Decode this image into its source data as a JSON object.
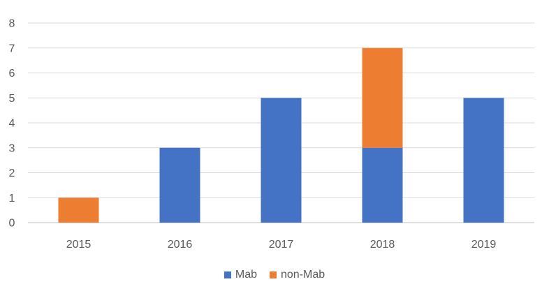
{
  "chart_data": {
    "type": "bar",
    "stacked": true,
    "title": "",
    "xlabel": "",
    "ylabel": "",
    "categories": [
      "2015",
      "2016",
      "2017",
      "2018",
      "2019"
    ],
    "ylim": [
      0,
      8
    ],
    "yticks": [
      0,
      1,
      2,
      3,
      4,
      5,
      6,
      7,
      8
    ],
    "grid": true,
    "legend_position": "bottom",
    "series": [
      {
        "name": "Mab",
        "color": "#4472C4",
        "values": [
          0,
          3,
          5,
          3,
          5
        ]
      },
      {
        "name": "non-Mab",
        "color": "#ED7D31",
        "values": [
          1,
          0,
          0,
          4,
          0
        ]
      }
    ]
  }
}
